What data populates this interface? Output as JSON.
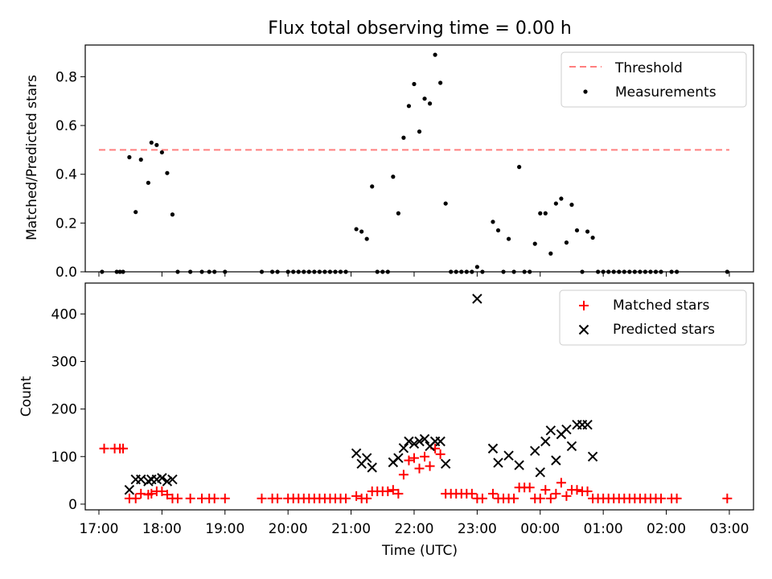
{
  "chart_data": [
    {
      "type": "scatter",
      "title": "Flux total observing time = 0.00 h",
      "ylabel": "Matched/Predicted stars",
      "xlabel": "",
      "ylim": [
        0,
        0.93
      ],
      "yticks": [
        "0.0",
        "0.2",
        "0.4",
        "0.6",
        "0.8"
      ],
      "ytick_values": [
        0,
        0.2,
        0.4,
        0.6,
        0.8
      ],
      "grid": false,
      "legend_position": "top-right",
      "threshold": {
        "name": "Threshold",
        "y": 0.5,
        "x_range": [
          "17:00",
          "03:00"
        ],
        "color": "#ff7f7f"
      },
      "series": [
        {
          "name": "Measurements",
          "color": "#000000",
          "points": [
            [
              "17:03",
              0.0
            ],
            [
              "17:17",
              0.0
            ],
            [
              "17:20",
              0.0
            ],
            [
              "17:23",
              0.0
            ],
            [
              "17:29",
              0.47
            ],
            [
              "17:35",
              0.245
            ],
            [
              "17:40",
              0.46
            ],
            [
              "17:47",
              0.365
            ],
            [
              "17:50",
              0.53
            ],
            [
              "17:55",
              0.52
            ],
            [
              "18:00",
              0.49
            ],
            [
              "18:05",
              0.405
            ],
            [
              "18:10",
              0.235
            ],
            [
              "18:15",
              0.0
            ],
            [
              "18:27",
              0.0
            ],
            [
              "18:38",
              0.0
            ],
            [
              "18:45",
              0.0
            ],
            [
              "18:50",
              0.0
            ],
            [
              "19:00",
              0.0
            ],
            [
              "19:35",
              0.0
            ],
            [
              "19:45",
              0.0
            ],
            [
              "19:50",
              0.0
            ],
            [
              "20:00",
              0.0
            ],
            [
              "20:05",
              0.0
            ],
            [
              "20:10",
              0.0
            ],
            [
              "20:15",
              0.0
            ],
            [
              "20:20",
              0.0
            ],
            [
              "20:25",
              0.0
            ],
            [
              "20:30",
              0.0
            ],
            [
              "20:35",
              0.0
            ],
            [
              "20:40",
              0.0
            ],
            [
              "20:45",
              0.0
            ],
            [
              "20:50",
              0.0
            ],
            [
              "20:55",
              0.0
            ],
            [
              "21:05",
              0.175
            ],
            [
              "21:10",
              0.165
            ],
            [
              "21:15",
              0.135
            ],
            [
              "21:20",
              0.35
            ],
            [
              "21:25",
              0.0
            ],
            [
              "21:30",
              0.0
            ],
            [
              "21:35",
              0.0
            ],
            [
              "21:40",
              0.39
            ],
            [
              "21:45",
              0.24
            ],
            [
              "21:50",
              0.55
            ],
            [
              "21:55",
              0.68
            ],
            [
              "22:00",
              0.77
            ],
            [
              "22:05",
              0.575
            ],
            [
              "22:10",
              0.71
            ],
            [
              "22:15",
              0.69
            ],
            [
              "22:20",
              0.89
            ],
            [
              "22:25",
              0.775
            ],
            [
              "22:30",
              0.28
            ],
            [
              "22:35",
              0.0
            ],
            [
              "22:40",
              0.0
            ],
            [
              "22:45",
              0.0
            ],
            [
              "22:50",
              0.0
            ],
            [
              "22:55",
              0.0
            ],
            [
              "23:00",
              0.02
            ],
            [
              "23:05",
              0.0
            ],
            [
              "23:15",
              0.205
            ],
            [
              "23:20",
              0.17
            ],
            [
              "23:25",
              0.0
            ],
            [
              "23:30",
              0.135
            ],
            [
              "23:35",
              0.0
            ],
            [
              "23:40",
              0.43
            ],
            [
              "23:45",
              0.0
            ],
            [
              "23:50",
              0.0
            ],
            [
              "23:55",
              0.115
            ],
            [
              "00:00",
              0.24
            ],
            [
              "00:05",
              0.24
            ],
            [
              "00:10",
              0.075
            ],
            [
              "00:15",
              0.28
            ],
            [
              "00:20",
              0.3
            ],
            [
              "00:25",
              0.12
            ],
            [
              "00:30",
              0.275
            ],
            [
              "00:35",
              0.17
            ],
            [
              "00:40",
              0.0
            ],
            [
              "00:45",
              0.165
            ],
            [
              "00:50",
              0.14
            ],
            [
              "00:55",
              0.0
            ],
            [
              "01:00",
              0.0
            ],
            [
              "01:05",
              0.0
            ],
            [
              "01:10",
              0.0
            ],
            [
              "01:15",
              0.0
            ],
            [
              "01:20",
              0.0
            ],
            [
              "01:25",
              0.0
            ],
            [
              "01:30",
              0.0
            ],
            [
              "01:35",
              0.0
            ],
            [
              "01:40",
              0.0
            ],
            [
              "01:45",
              0.0
            ],
            [
              "01:50",
              0.0
            ],
            [
              "01:55",
              0.0
            ],
            [
              "02:05",
              0.0
            ],
            [
              "02:10",
              0.0
            ],
            [
              "02:58",
              0.0
            ]
          ]
        }
      ]
    },
    {
      "type": "scatter",
      "title": "",
      "ylabel": "Count",
      "xlabel": "Time (UTC)",
      "ylim": [
        -12,
        465
      ],
      "yticks": [
        "0",
        "100",
        "200",
        "300",
        "400"
      ],
      "ytick_values": [
        0,
        100,
        200,
        300,
        400
      ],
      "xlim": [
        "16:47",
        "03:23"
      ],
      "xticks": [
        "17:00",
        "18:00",
        "19:00",
        "20:00",
        "21:00",
        "22:00",
        "23:00",
        "00:00",
        "01:00",
        "02:00",
        "03:00"
      ],
      "grid": false,
      "legend_position": "top-right",
      "series": [
        {
          "name": "Matched stars",
          "marker": "plus",
          "color": "#ff0000",
          "points": [
            [
              "17:05",
              117
            ],
            [
              "17:15",
              117
            ],
            [
              "17:20",
              117
            ],
            [
              "17:23",
              117
            ],
            [
              "17:29",
              12
            ],
            [
              "17:35",
              12
            ],
            [
              "17:40",
              22
            ],
            [
              "17:47",
              20
            ],
            [
              "17:50",
              22
            ],
            [
              "17:55",
              27
            ],
            [
              "18:00",
              27
            ],
            [
              "18:05",
              20
            ],
            [
              "18:10",
              12
            ],
            [
              "18:15",
              12
            ],
            [
              "18:27",
              12
            ],
            [
              "18:38",
              12
            ],
            [
              "18:45",
              12
            ],
            [
              "18:50",
              12
            ],
            [
              "19:00",
              12
            ],
            [
              "19:35",
              12
            ],
            [
              "19:45",
              12
            ],
            [
              "19:50",
              12
            ],
            [
              "20:00",
              12
            ],
            [
              "20:05",
              12
            ],
            [
              "20:10",
              12
            ],
            [
              "20:15",
              12
            ],
            [
              "20:20",
              12
            ],
            [
              "20:25",
              12
            ],
            [
              "20:30",
              12
            ],
            [
              "20:35",
              12
            ],
            [
              "20:40",
              12
            ],
            [
              "20:45",
              12
            ],
            [
              "20:50",
              12
            ],
            [
              "20:55",
              12
            ],
            [
              "21:05",
              17
            ],
            [
              "21:10",
              12
            ],
            [
              "21:15",
              12
            ],
            [
              "21:20",
              27
            ],
            [
              "21:25",
              27
            ],
            [
              "21:30",
              27
            ],
            [
              "21:35",
              27
            ],
            [
              "21:40",
              30
            ],
            [
              "21:45",
              22
            ],
            [
              "21:50",
              62
            ],
            [
              "21:55",
              92
            ],
            [
              "22:00",
              97
            ],
            [
              "22:05",
              75
            ],
            [
              "22:10",
              100
            ],
            [
              "22:15",
              80
            ],
            [
              "22:20",
              117
            ],
            [
              "22:25",
              105
            ],
            [
              "22:30",
              22
            ],
            [
              "22:35",
              22
            ],
            [
              "22:40",
              22
            ],
            [
              "22:45",
              22
            ],
            [
              "22:50",
              22
            ],
            [
              "22:55",
              22
            ],
            [
              "23:00",
              12
            ],
            [
              "23:05",
              12
            ],
            [
              "23:15",
              22
            ],
            [
              "23:20",
              12
            ],
            [
              "23:25",
              12
            ],
            [
              "23:30",
              12
            ],
            [
              "23:35",
              12
            ],
            [
              "23:40",
              35
            ],
            [
              "23:45",
              35
            ],
            [
              "23:50",
              35
            ],
            [
              "23:55",
              12
            ],
            [
              "00:00",
              12
            ],
            [
              "00:05",
              30
            ],
            [
              "00:10",
              12
            ],
            [
              "00:15",
              22
            ],
            [
              "00:20",
              45
            ],
            [
              "00:25",
              17
            ],
            [
              "00:30",
              30
            ],
            [
              "00:35",
              30
            ],
            [
              "00:40",
              27
            ],
            [
              "00:45",
              27
            ],
            [
              "00:50",
              12
            ],
            [
              "00:55",
              12
            ],
            [
              "01:00",
              12
            ],
            [
              "01:05",
              12
            ],
            [
              "01:10",
              12
            ],
            [
              "01:15",
              12
            ],
            [
              "01:20",
              12
            ],
            [
              "01:25",
              12
            ],
            [
              "01:30",
              12
            ],
            [
              "01:35",
              12
            ],
            [
              "01:40",
              12
            ],
            [
              "01:45",
              12
            ],
            [
              "01:50",
              12
            ],
            [
              "01:55",
              12
            ],
            [
              "02:05",
              12
            ],
            [
              "02:10",
              12
            ],
            [
              "02:58",
              12
            ]
          ]
        },
        {
          "name": "Predicted stars",
          "marker": "x",
          "color": "#000000",
          "points": [
            [
              "17:29",
              30
            ],
            [
              "17:35",
              52
            ],
            [
              "17:40",
              52
            ],
            [
              "17:47",
              48
            ],
            [
              "17:50",
              52
            ],
            [
              "17:55",
              52
            ],
            [
              "18:00",
              55
            ],
            [
              "18:05",
              48
            ],
            [
              "18:10",
              52
            ],
            [
              "21:05",
              107
            ],
            [
              "21:10",
              85
            ],
            [
              "21:15",
              97
            ],
            [
              "21:20",
              77
            ],
            [
              "21:40",
              88
            ],
            [
              "21:45",
              97
            ],
            [
              "21:50",
              118
            ],
            [
              "21:55",
              132
            ],
            [
              "22:00",
              127
            ],
            [
              "22:05",
              132
            ],
            [
              "22:10",
              137
            ],
            [
              "22:15",
              122
            ],
            [
              "22:20",
              132
            ],
            [
              "22:25",
              132
            ],
            [
              "22:30",
              85
            ],
            [
              "23:00",
              432
            ],
            [
              "23:15",
              117
            ],
            [
              "23:20",
              87
            ],
            [
              "23:30",
              102
            ],
            [
              "23:40",
              82
            ],
            [
              "23:55",
              112
            ],
            [
              "00:00",
              67
            ],
            [
              "00:05",
              132
            ],
            [
              "00:10",
              155
            ],
            [
              "00:15",
              92
            ],
            [
              "00:20",
              147
            ],
            [
              "00:25",
              157
            ],
            [
              "00:30",
              122
            ],
            [
              "00:35",
              167
            ],
            [
              "00:40",
              167
            ],
            [
              "00:45",
              167
            ],
            [
              "00:50",
              100
            ]
          ]
        }
      ]
    }
  ]
}
